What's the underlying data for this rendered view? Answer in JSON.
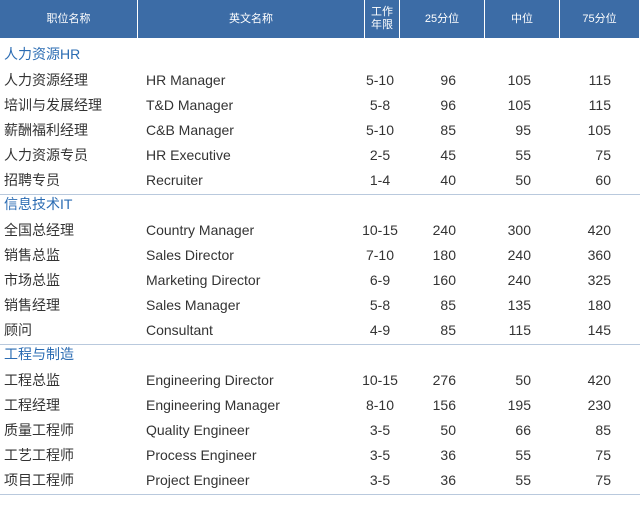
{
  "header": [
    "职位名称",
    "英文名称",
    "工作年限",
    "25分位",
    "中位",
    "75分位"
  ],
  "sections": [
    {
      "title": "人力资源HR",
      "rows": [
        [
          "人力资源经理",
          "HR Manager",
          "5-10",
          96,
          105,
          115
        ],
        [
          "培训与发展经理",
          "T&D Manager",
          "5-8",
          96,
          105,
          115
        ],
        [
          "薪酬福利经理",
          "C&B Manager",
          "5-10",
          85,
          95,
          105
        ],
        [
          "人力资源专员",
          "HR Executive",
          "2-5",
          45,
          55,
          75
        ],
        [
          "招聘专员",
          "Recruiter",
          "1-4",
          40,
          50,
          60
        ]
      ]
    },
    {
      "title": "信息技术IT",
      "rows": [
        [
          "全国总经理",
          "Country Manager",
          "10-15",
          240,
          300,
          420
        ],
        [
          "销售总监",
          "Sales Director",
          "7-10",
          180,
          240,
          360
        ],
        [
          "市场总监",
          "Marketing Director",
          "6-9",
          160,
          240,
          325
        ],
        [
          "销售经理",
          "Sales Manager",
          "5-8",
          85,
          135,
          180
        ],
        [
          "顾问",
          "Consultant",
          "4-9",
          85,
          115,
          145
        ]
      ]
    },
    {
      "title": "工程与制造",
      "rows": [
        [
          "工程总监",
          "Engineering Director",
          "10-15",
          276,
          50,
          420
        ],
        [
          "工程经理",
          "Engineering Manager",
          "8-10",
          156,
          195,
          230
        ],
        [
          "质量工程师",
          "Quality Engineer",
          "3-5",
          50,
          66,
          85
        ],
        [
          "工艺工程师",
          "Process Engineer",
          "3-5",
          36,
          55,
          75
        ],
        [
          "项目工程师",
          "Project Engineer",
          "3-5",
          36,
          55,
          75
        ]
      ]
    }
  ]
}
